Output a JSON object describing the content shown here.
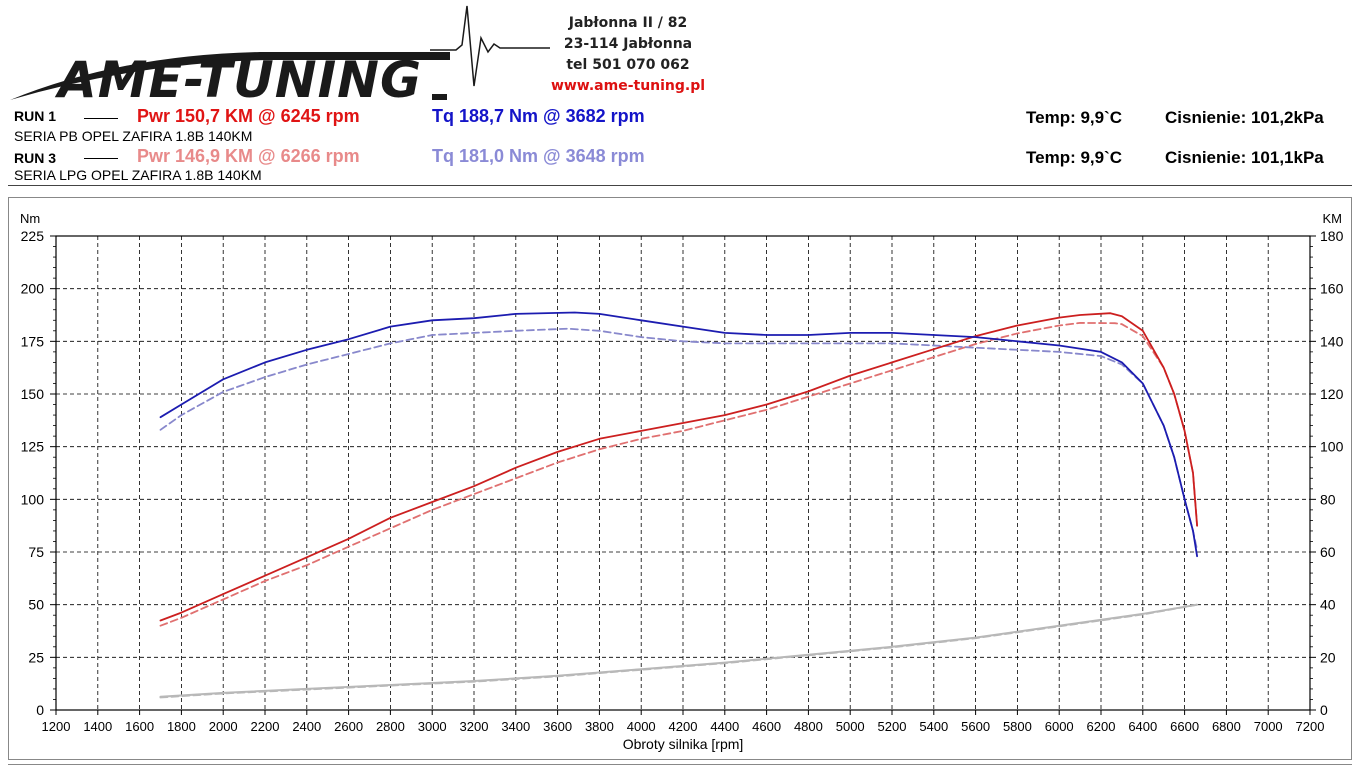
{
  "header": {
    "logo_text": "AME-TUNING",
    "address_lines": [
      "Jabłonna II / 82",
      "23-114 Jabłonna",
      "tel 501 070 062"
    ],
    "website": "www.ame-tuning.pl"
  },
  "runs": [
    {
      "label": "RUN 1",
      "power": "Pwr  150,7 KM @ 6245 rpm",
      "torque": "Tq 188,7 Nm @ 3682 rpm",
      "vehicle": "SERIA PB OPEL ZAFIRA 1.8B 140KM",
      "temp": "Temp: 9,9`C",
      "pressure": "Cisnienie: 101,2kPa"
    },
    {
      "label": "RUN 3",
      "power": "Pwr  146,9 KM @ 6266 rpm",
      "torque": "Tq 181,0 Nm @ 3648 rpm",
      "vehicle": "SERIA LPG OPEL ZAFIRA 1.8B 140KM",
      "temp": "Temp: 9,9`C",
      "pressure": "Cisnienie: 101,1kPa"
    }
  ],
  "colors": {
    "run1_power": "#cc1f1f",
    "run1_torque": "#1c1cb0",
    "run3_power": "#e07070",
    "run3_torque": "#8888cc",
    "loss": "#b8b8b8"
  },
  "chart_data": {
    "type": "line",
    "xlabel": "Obroty silnika [rpm]",
    "ylabel_left": "Nm",
    "ylabel_right": "KM",
    "xlim": [
      1200,
      7200
    ],
    "ylim_left": [
      0,
      225
    ],
    "ylim_right": [
      0,
      180
    ],
    "x_ticks": [
      1200,
      1400,
      1600,
      1800,
      2000,
      2200,
      2400,
      2600,
      2800,
      3000,
      3200,
      3400,
      3600,
      3800,
      4000,
      4200,
      4400,
      4600,
      4800,
      5000,
      5200,
      5400,
      5600,
      5800,
      6000,
      6200,
      6400,
      6600,
      6800,
      7000,
      7200
    ],
    "y_ticks_left": [
      0,
      25,
      50,
      75,
      100,
      125,
      150,
      175,
      200,
      225
    ],
    "y_ticks_right": [
      0,
      20,
      40,
      60,
      80,
      100,
      120,
      140,
      160,
      180
    ],
    "grid": true,
    "series": [
      {
        "axis": "left",
        "style": "solid",
        "x": [
          1700,
          1800,
          2000,
          2200,
          2400,
          2600,
          2800,
          3000,
          3200,
          3400,
          3682,
          3800,
          4000,
          4200,
          4400,
          4600,
          4800,
          5000,
          5200,
          5400,
          5600,
          5800,
          6000,
          6200,
          6300,
          6400,
          6500,
          6550,
          6600,
          6640,
          6660
        ],
        "y": [
          139,
          145,
          157,
          165,
          171,
          176,
          182,
          185,
          186,
          188,
          188.7,
          188,
          185,
          182,
          179,
          178,
          178,
          179,
          179,
          178,
          177,
          175,
          173,
          170,
          165,
          155,
          135,
          120,
          100,
          85,
          73
        ]
      },
      {
        "axis": "left",
        "style": "dashed",
        "x": [
          1700,
          1800,
          2000,
          2200,
          2400,
          2600,
          2800,
          3000,
          3200,
          3400,
          3648,
          3800,
          4000,
          4200,
          4400,
          4600,
          4800,
          5000,
          5200,
          5400,
          5600,
          5800,
          6000,
          6200,
          6300,
          6400,
          6500,
          6550,
          6600,
          6640,
          6660
        ],
        "y": [
          133,
          140,
          151,
          158,
          164,
          169,
          174,
          178,
          179,
          180,
          181,
          180,
          177,
          175,
          174,
          174,
          174,
          174,
          174,
          173,
          172,
          171,
          170,
          168,
          164,
          155,
          135,
          120,
          100,
          85,
          76
        ]
      },
      {
        "axis": "right",
        "style": "solid",
        "x": [
          1700,
          1800,
          2000,
          2200,
          2400,
          2600,
          2800,
          3000,
          3200,
          3400,
          3600,
          3800,
          4000,
          4200,
          4400,
          4600,
          4800,
          5000,
          5200,
          5400,
          5600,
          5800,
          6000,
          6100,
          6245,
          6300,
          6400,
          6500,
          6550,
          6600,
          6640,
          6660
        ],
        "y": [
          34,
          37,
          44,
          51,
          58,
          65,
          73,
          79,
          85,
          92,
          98,
          103,
          106,
          109,
          112,
          116,
          121,
          127,
          132,
          137,
          142,
          146,
          149,
          150,
          150.7,
          149.5,
          144,
          130,
          120,
          106,
          90,
          70
        ]
      },
      {
        "axis": "right",
        "style": "dashed",
        "x": [
          1700,
          1800,
          2000,
          2200,
          2400,
          2600,
          2800,
          3000,
          3200,
          3400,
          3600,
          3800,
          4000,
          4200,
          4400,
          4600,
          4800,
          5000,
          5200,
          5400,
          5600,
          5800,
          6000,
          6100,
          6266,
          6300,
          6400,
          6500,
          6550,
          6600,
          6640,
          6660
        ],
        "y": [
          32,
          35,
          42,
          49,
          55,
          62,
          69,
          76,
          82,
          88,
          94,
          99,
          103,
          106,
          110,
          114,
          119,
          124,
          129,
          134,
          139,
          143,
          146,
          147,
          146.9,
          146.5,
          142,
          130,
          120,
          106,
          90,
          70
        ]
      },
      {
        "axis": "right",
        "style": "solid",
        "x": [
          1700,
          2000,
          2400,
          2800,
          3200,
          3600,
          4000,
          4400,
          4800,
          5200,
          5600,
          6000,
          6400,
          6660
        ],
        "y": [
          5,
          6.5,
          8,
          9.5,
          11,
          13,
          15.5,
          18,
          21,
          24,
          27.5,
          32,
          36.5,
          40
        ]
      },
      {
        "axis": "right",
        "style": "dashed",
        "x": [
          1700,
          2000,
          2400,
          2800,
          3200,
          3600,
          4000,
          4400,
          4800,
          5200,
          5600,
          6000,
          6400,
          6660
        ],
        "y": [
          4.8,
          6.3,
          7.8,
          9.3,
          10.8,
          12.8,
          15.3,
          17.8,
          20.8,
          23.8,
          27.3,
          31.8,
          36.3,
          40
        ]
      }
    ]
  }
}
